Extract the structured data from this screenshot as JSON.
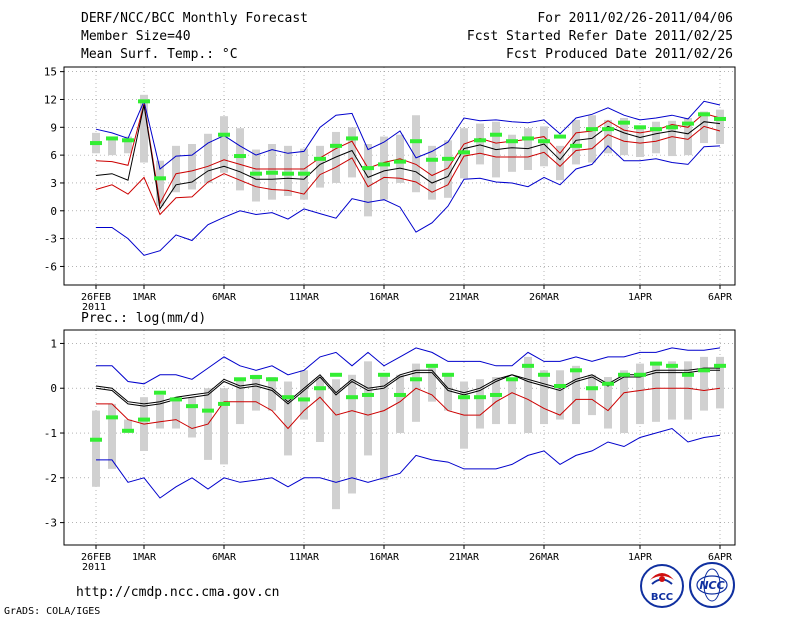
{
  "header": {
    "title": "DERF/NCC/BCC Monthly Forecast",
    "member_size": "Member Size=40",
    "variable": "Mean Surf. Temp.: °C",
    "period": "For 2011/02/26-2011/04/06",
    "started": "Fcst Started Refer Date 2011/02/25",
    "produced": "Fcst Produced Date 2011/02/26"
  },
  "panel2_title": "Prec.: log(mm/d)",
  "footer": {
    "url": "http://cmdp.ncc.cma.gov.cn",
    "credit": "GrADS: COLA/IGES",
    "logo_bcc": "BCC",
    "logo_ncc": "NCC"
  },
  "colors": {
    "blue": "#0000cc",
    "red": "#cc0000",
    "black": "#000000",
    "green": "#33ee33",
    "box": "#d0d0d0"
  },
  "chart_data": [
    {
      "type": "line",
      "title": "Mean Surf. Temp.: °C",
      "x_day_index": [
        0,
        1,
        2,
        3,
        4,
        5,
        6,
        7,
        8,
        9,
        10,
        11,
        12,
        13,
        14,
        15,
        16,
        17,
        18,
        19,
        20,
        21,
        22,
        23,
        24,
        25,
        26,
        27,
        28,
        29,
        30,
        31,
        32,
        33,
        34,
        35,
        36,
        37,
        38,
        39
      ],
      "xtick_labels": [
        "26FEB",
        "1MAR",
        "6MAR",
        "11MAR",
        "16MAR",
        "21MAR",
        "26MAR",
        "1APR",
        "6APR"
      ],
      "xtick_positions": [
        0,
        3,
        8,
        13,
        18,
        23,
        28,
        34,
        39
      ],
      "xsub_label": "2011",
      "ylim": [
        -8,
        15.5
      ],
      "yticks": [
        -6,
        -3,
        0,
        3,
        6,
        9,
        12,
        15
      ],
      "series": [
        {
          "name": "max",
          "color": "blue",
          "values": [
            8.8,
            8.4,
            7.8,
            11.8,
            4.5,
            5.9,
            6.0,
            7.3,
            8.1,
            7.0,
            6.0,
            6.6,
            6.2,
            6.4,
            9.0,
            10.3,
            10.5,
            6.6,
            7.4,
            8.6,
            5.7,
            6.4,
            7.4,
            10.0,
            9.7,
            9.8,
            9.6,
            9.5,
            9.8,
            8.3,
            10.0,
            10.4,
            11.1,
            10.3,
            9.8,
            10.0,
            10.3,
            9.9,
            11.8,
            11.4
          ]
        },
        {
          "name": "upper",
          "color": "red",
          "values": [
            5.4,
            5.3,
            4.9,
            11.5,
            0.8,
            4.0,
            4.3,
            4.8,
            5.5,
            5.0,
            4.5,
            4.5,
            4.5,
            4.5,
            5.7,
            6.7,
            7.5,
            4.6,
            5.2,
            5.6,
            5.0,
            3.8,
            4.6,
            7.2,
            7.8,
            7.3,
            7.5,
            7.7,
            8.0,
            6.2,
            8.4,
            8.6,
            9.7,
            8.7,
            8.4,
            8.7,
            9.3,
            9.0,
            10.5,
            10.0
          ]
        },
        {
          "name": "mean",
          "color": "black",
          "values": [
            3.8,
            4.0,
            3.3,
            11.4,
            0.2,
            2.8,
            3.1,
            4.3,
            4.8,
            4.2,
            3.4,
            3.4,
            3.5,
            3.4,
            5.0,
            5.8,
            6.5,
            3.6,
            4.3,
            4.6,
            4.2,
            3.0,
            3.7,
            6.7,
            7.1,
            6.6,
            6.8,
            6.7,
            7.2,
            5.5,
            7.6,
            7.8,
            9.1,
            8.4,
            7.9,
            8.3,
            8.6,
            8.3,
            9.6,
            9.4
          ]
        },
        {
          "name": "lower",
          "color": "red",
          "values": [
            2.3,
            2.8,
            1.8,
            3.6,
            -0.4,
            1.4,
            1.5,
            3.1,
            4.0,
            3.3,
            2.6,
            2.3,
            2.2,
            1.8,
            3.9,
            4.7,
            5.7,
            2.6,
            3.6,
            3.5,
            3.1,
            2.0,
            2.8,
            5.9,
            6.2,
            5.8,
            5.8,
            5.8,
            6.3,
            4.8,
            6.5,
            6.7,
            8.2,
            7.5,
            7.3,
            7.5,
            8.0,
            7.7,
            9.1,
            8.6
          ]
        },
        {
          "name": "min",
          "color": "blue",
          "values": [
            -1.8,
            -1.8,
            -3.0,
            -4.8,
            -4.3,
            -2.6,
            -3.2,
            -1.5,
            -0.7,
            0.0,
            -0.4,
            -0.2,
            -0.9,
            0.2,
            -0.3,
            -0.8,
            1.3,
            0.9,
            1.2,
            0.4,
            -2.3,
            -1.3,
            0.5,
            3.4,
            3.5,
            3.1,
            3.0,
            2.6,
            3.6,
            2.8,
            4.5,
            5.0,
            7.0,
            5.4,
            5.4,
            5.6,
            5.2,
            5.0,
            6.9,
            7.0
          ]
        },
        {
          "name": "observed",
          "color": "green",
          "values": [
            7.3,
            7.8,
            7.6,
            11.8,
            3.5,
            null,
            null,
            null,
            8.2,
            5.9,
            4.0,
            4.1,
            4.0,
            4.0,
            5.6,
            7.0,
            7.8,
            4.6,
            5.0,
            5.3,
            7.5,
            5.5,
            5.6,
            6.3,
            7.6,
            8.2,
            7.5,
            7.8,
            7.5,
            8.0,
            7.0,
            8.8,
            8.8,
            9.5,
            9.0,
            8.8,
            9.0,
            9.4,
            10.4,
            9.9
          ]
        }
      ],
      "boxes_low": [
        6.2,
        6.0,
        6.2,
        5.2,
        0.5,
        2.0,
        2.3,
        3.0,
        4.1,
        2.2,
        1.0,
        1.2,
        1.6,
        1.2,
        2.5,
        3.0,
        3.6,
        -0.6,
        1.2,
        3.0,
        2.0,
        1.2,
        1.4,
        3.5,
        5.0,
        3.6,
        4.2,
        4.4,
        4.8,
        3.3,
        5.0,
        5.2,
        6.2,
        6.0,
        5.8,
        6.2,
        5.9,
        6.0,
        7.3,
        7.2
      ],
      "boxes_high": [
        8.4,
        8.0,
        8.0,
        12.5,
        5.4,
        7.0,
        7.2,
        8.3,
        10.2,
        8.9,
        6.6,
        7.2,
        7.0,
        6.7,
        7.0,
        8.5,
        9.0,
        7.2,
        8.0,
        8.2,
        10.3,
        7.0,
        7.6,
        8.9,
        9.4,
        9.6,
        8.2,
        8.9,
        9.1,
        7.0,
        9.8,
        10.3,
        9.8,
        10.0,
        9.2,
        9.6,
        9.7,
        10.0,
        10.7,
        10.9
      ]
    },
    {
      "type": "line",
      "title": "Prec.: log(mm/d)",
      "x_day_index": [
        0,
        1,
        2,
        3,
        4,
        5,
        6,
        7,
        8,
        9,
        10,
        11,
        12,
        13,
        14,
        15,
        16,
        17,
        18,
        19,
        20,
        21,
        22,
        23,
        24,
        25,
        26,
        27,
        28,
        29,
        30,
        31,
        32,
        33,
        34,
        35,
        36,
        37,
        38,
        39
      ],
      "xtick_labels": [
        "26FEB",
        "1MAR",
        "6MAR",
        "11MAR",
        "16MAR",
        "21MAR",
        "26MAR",
        "1APR",
        "6APR"
      ],
      "xtick_positions": [
        0,
        3,
        8,
        13,
        18,
        23,
        28,
        34,
        39
      ],
      "xsub_label": "2011",
      "ylim": [
        -3.5,
        1.3
      ],
      "yticks": [
        -3,
        -2,
        -1,
        0,
        1
      ],
      "series": [
        {
          "name": "max",
          "color": "blue",
          "values": [
            0.5,
            0.5,
            0.15,
            0.1,
            0.3,
            0.3,
            0.2,
            0.45,
            0.7,
            0.5,
            0.4,
            0.5,
            0.3,
            0.4,
            0.7,
            0.8,
            0.5,
            0.8,
            0.5,
            0.7,
            0.9,
            0.8,
            0.6,
            0.6,
            0.6,
            0.5,
            0.5,
            0.8,
            0.6,
            0.6,
            0.7,
            0.6,
            0.7,
            0.7,
            0.8,
            0.8,
            0.9,
            0.85,
            0.85,
            0.9
          ]
        },
        {
          "name": "upper",
          "color": "black",
          "values": [
            0.05,
            0.0,
            -0.3,
            -0.35,
            -0.3,
            -0.2,
            -0.15,
            -0.1,
            0.2,
            0.05,
            0.1,
            0.0,
            -0.3,
            0.0,
            0.3,
            -0.1,
            0.2,
            0.0,
            0.05,
            0.3,
            0.4,
            0.4,
            0.0,
            -0.1,
            0.0,
            0.2,
            0.3,
            0.2,
            0.1,
            0.0,
            0.2,
            0.3,
            0.1,
            0.3,
            0.3,
            0.4,
            0.4,
            0.4,
            0.45,
            0.45
          ]
        },
        {
          "name": "mean",
          "color": "black",
          "values": [
            0.0,
            -0.05,
            -0.35,
            -0.4,
            -0.35,
            -0.25,
            -0.2,
            -0.15,
            0.15,
            0.0,
            0.05,
            -0.05,
            -0.35,
            -0.05,
            0.25,
            -0.15,
            0.15,
            -0.05,
            0.0,
            0.25,
            0.35,
            0.35,
            -0.05,
            -0.15,
            -0.05,
            0.15,
            0.3,
            0.15,
            0.05,
            -0.05,
            0.15,
            0.25,
            0.05,
            0.25,
            0.25,
            0.35,
            0.35,
            0.35,
            0.4,
            0.4
          ]
        },
        {
          "name": "lower",
          "color": "red",
          "values": [
            -0.35,
            -0.35,
            -0.7,
            -0.8,
            -0.75,
            -0.7,
            -0.9,
            -0.8,
            -0.3,
            -0.3,
            -0.3,
            -0.5,
            -0.9,
            -0.5,
            -0.2,
            -0.6,
            -0.5,
            -0.6,
            -0.5,
            -0.3,
            0.0,
            -0.15,
            -0.5,
            -0.6,
            -0.6,
            -0.3,
            -0.1,
            -0.25,
            -0.45,
            -0.6,
            -0.25,
            -0.25,
            -0.5,
            -0.1,
            -0.05,
            0.0,
            0.0,
            0.0,
            -0.05,
            0.0
          ]
        },
        {
          "name": "min",
          "color": "blue",
          "values": [
            -1.6,
            -1.6,
            -2.1,
            -2.0,
            -2.45,
            -2.2,
            -2.0,
            -2.25,
            -2.0,
            -2.1,
            -2.05,
            -2.0,
            -2.2,
            -2.0,
            -2.0,
            -2.1,
            -2.0,
            -2.1,
            -2.0,
            -1.9,
            -1.5,
            -1.6,
            -1.65,
            -1.8,
            -1.8,
            -1.8,
            -1.7,
            -1.5,
            -1.4,
            -1.7,
            -1.5,
            -1.4,
            -1.2,
            -1.3,
            -1.1,
            -1.0,
            -0.9,
            -1.2,
            -1.1,
            -1.05
          ]
        },
        {
          "name": "observed",
          "color": "green",
          "values": [
            -1.15,
            -0.65,
            -0.95,
            -0.7,
            -0.1,
            -0.25,
            -0.4,
            -0.5,
            -0.35,
            0.2,
            0.25,
            0.2,
            -0.2,
            -0.25,
            0.0,
            0.3,
            -0.2,
            -0.15,
            0.3,
            -0.15,
            0.2,
            0.5,
            0.3,
            -0.2,
            -0.2,
            -0.15,
            0.2,
            0.5,
            0.3,
            0.05,
            0.4,
            0.0,
            0.1,
            0.3,
            0.3,
            0.55,
            0.5,
            0.3,
            0.4,
            0.5
          ]
        }
      ],
      "boxes_low": [
        -2.2,
        -1.8,
        -1.0,
        -1.4,
        -0.9,
        -0.9,
        -1.1,
        -1.6,
        -1.7,
        -0.8,
        -0.5,
        -0.5,
        -1.5,
        -0.7,
        -1.2,
        -2.7,
        -2.35,
        -1.5,
        -2.05,
        -1.0,
        -0.75,
        -0.3,
        -0.5,
        -1.35,
        -0.9,
        -0.8,
        -0.8,
        -1.0,
        -0.8,
        -0.7,
        -0.8,
        -0.6,
        -0.9,
        -1.0,
        -0.8,
        -0.75,
        -0.7,
        -0.7,
        -0.5,
        -0.45
      ],
      "boxes_high": [
        -0.5,
        -0.35,
        -0.7,
        -0.2,
        -0.15,
        -0.2,
        -0.2,
        0.0,
        0.0,
        0.2,
        0.3,
        0.25,
        0.15,
        0.4,
        0.25,
        0.2,
        0.3,
        0.6,
        0.3,
        0.3,
        0.55,
        0.5,
        0.3,
        0.15,
        0.2,
        0.25,
        0.2,
        0.7,
        0.4,
        0.4,
        0.5,
        0.3,
        0.25,
        0.4,
        0.55,
        0.55,
        0.6,
        0.6,
        0.7,
        0.7
      ]
    }
  ]
}
